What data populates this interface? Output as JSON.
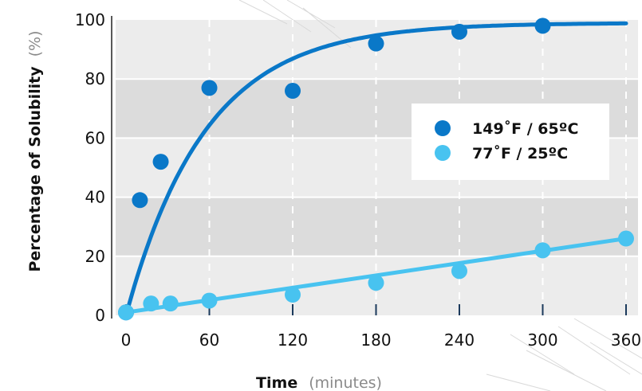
{
  "chart_data": {
    "type": "scatter",
    "xlabel": "Time",
    "xunit": "(minutes)",
    "ylabel": "Percentage of Solubility",
    "yunit": "(%)",
    "xlim": [
      0,
      360
    ],
    "ylim": [
      0,
      100
    ],
    "xticks": [
      "0",
      "60",
      "120",
      "180",
      "240",
      "300",
      "360"
    ],
    "yticks": [
      "0",
      "20",
      "40",
      "60",
      "80",
      "100"
    ],
    "background": "alternating gray horizontal bands",
    "grid": "vertical dashed white lines",
    "legend_position": "right-center",
    "series": [
      {
        "name": "149˚F / 65ºC",
        "color": "#0a78c8",
        "fit": "exponential",
        "points": [
          {
            "x": 0,
            "y": 1
          },
          {
            "x": 10,
            "y": 39
          },
          {
            "x": 25,
            "y": 52
          },
          {
            "x": 60,
            "y": 77
          },
          {
            "x": 120,
            "y": 76
          },
          {
            "x": 180,
            "y": 92
          },
          {
            "x": 240,
            "y": 96
          },
          {
            "x": 300,
            "y": 98
          }
        ],
        "curve": [
          [
            0,
            0
          ],
          [
            10,
            18
          ],
          [
            20,
            33
          ],
          [
            40,
            54
          ],
          [
            60,
            66
          ],
          [
            90,
            78
          ],
          [
            120,
            86
          ],
          [
            150,
            90
          ],
          [
            180,
            93
          ],
          [
            240,
            96
          ],
          [
            300,
            98
          ],
          [
            360,
            98
          ]
        ]
      },
      {
        "name": "77˚F / 25ºC",
        "color": "#48c3f0",
        "fit": "linear",
        "points": [
          {
            "x": 0,
            "y": 1
          },
          {
            "x": 18,
            "y": 4
          },
          {
            "x": 32,
            "y": 4
          },
          {
            "x": 60,
            "y": 5
          },
          {
            "x": 120,
            "y": 7
          },
          {
            "x": 180,
            "y": 11
          },
          {
            "x": 240,
            "y": 15
          },
          {
            "x": 300,
            "y": 22
          },
          {
            "x": 360,
            "y": 26
          }
        ],
        "curve": [
          [
            0,
            1
          ],
          [
            360,
            26
          ]
        ]
      }
    ]
  }
}
